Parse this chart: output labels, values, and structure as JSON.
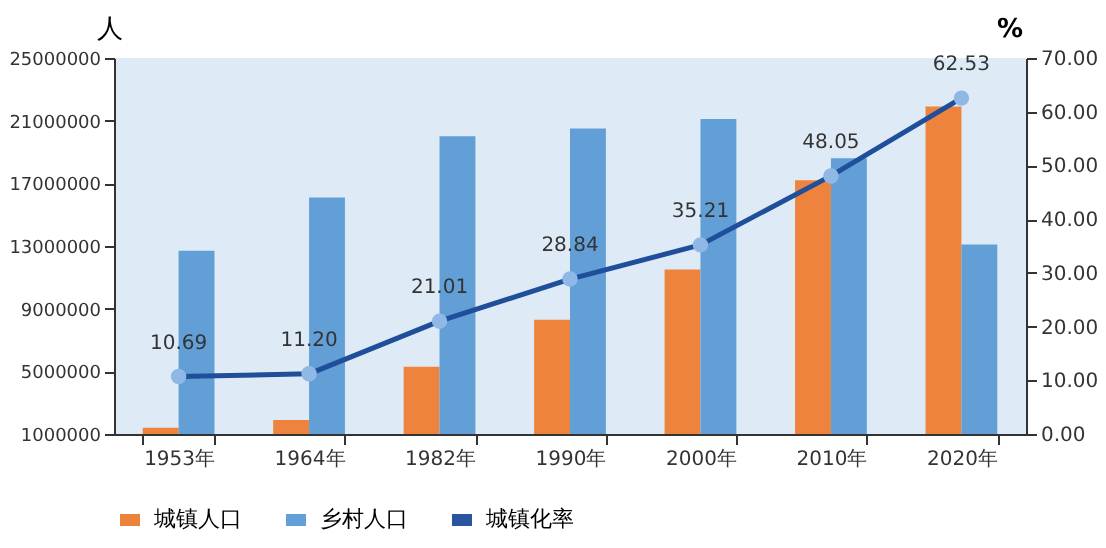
{
  "chart_data": {
    "type": "bar",
    "ylabel": "人",
    "y2label": "%",
    "categories": [
      "1953年",
      "1964年",
      "1982年",
      "1990年",
      "2000年",
      "2010年",
      "2020年"
    ],
    "series": [
      {
        "name": "城镇人口",
        "color": "#ed7d31",
        "values": [
          1400000,
          1900000,
          5300000,
          8300000,
          11500000,
          17200000,
          21900000
        ]
      },
      {
        "name": "乡村人口",
        "color": "#5b9bd5",
        "values": [
          12700000,
          16100000,
          20000000,
          20500000,
          21100000,
          18600000,
          13100000
        ]
      },
      {
        "name": "城镇化率",
        "type": "line",
        "axis": "y2",
        "color": "#1f4e9a",
        "marker": "circle",
        "values": [
          10.69,
          11.2,
          21.01,
          28.84,
          35.21,
          48.05,
          62.53
        ],
        "value_labels": [
          "10.69",
          "11.20",
          "21.01",
          "28.84",
          "35.21",
          "48.05",
          "62.53"
        ]
      }
    ],
    "ylim": [
      1000000,
      25000000
    ],
    "yticks": [
      1000000,
      5000000,
      9000000,
      13000000,
      17000000,
      21000000,
      25000000
    ],
    "y2lim": [
      0,
      70
    ],
    "y2ticks": [
      {
        "value": 0,
        "label": "0.00"
      },
      {
        "value": 10,
        "label": "10.00"
      },
      {
        "value": 20,
        "label": "20.00"
      },
      {
        "value": 30,
        "label": "30.00"
      },
      {
        "value": 40,
        "label": "40.00"
      },
      {
        "value": 50,
        "label": "50.00"
      },
      {
        "value": 60,
        "label": "60.00"
      },
      {
        "value": 70,
        "label": "70.00"
      }
    ],
    "grid": false,
    "legend": "bottom"
  }
}
